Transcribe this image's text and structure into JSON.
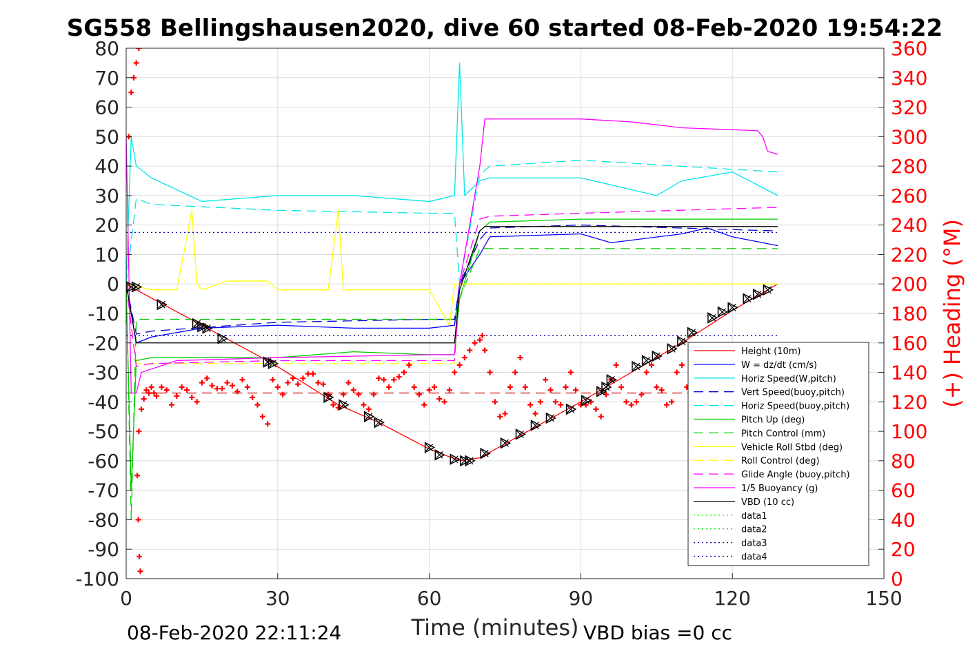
{
  "chart_data": {
    "type": "line",
    "title": "SG558 Bellingshausen2020, dive 60 started 08-Feb-2020 19:54:22",
    "xlabel": "Time (minutes)",
    "ylabel_right": "(+) Heading (°M)",
    "footer_left": "08-Feb-2020 22:11:24",
    "footer_right": "VBD bias =0 cc",
    "xlim": [
      0,
      150
    ],
    "ylim": [
      -100,
      80
    ],
    "ylim_right": [
      0,
      360
    ],
    "xticks": [
      0,
      30,
      60,
      90,
      120,
      150
    ],
    "yticks": [
      -100,
      -90,
      -80,
      -70,
      -60,
      -50,
      -40,
      -30,
      -20,
      -10,
      0,
      10,
      20,
      30,
      40,
      50,
      60,
      70,
      80
    ],
    "yticks_right": [
      0,
      20,
      40,
      60,
      80,
      100,
      120,
      140,
      160,
      180,
      200,
      220,
      240,
      260,
      280,
      300,
      320,
      340,
      360
    ],
    "grid": true,
    "legend_position": "bottom-right",
    "series": [
      {
        "name": "Height (10m)",
        "color": "#ff0000",
        "style": "solid",
        "x": [
          0,
          2,
          29,
          42,
          50,
          60,
          66,
          70,
          90,
          110,
          120,
          129
        ],
        "y": [
          0,
          -2,
          -27,
          -41,
          -47,
          -56,
          -60,
          -59,
          -40,
          -20,
          -9,
          0
        ]
      },
      {
        "name": "W = dz/dt (cm/s)",
        "color": "#0000ff",
        "style": "solid",
        "x": [
          0,
          1,
          2,
          5,
          15,
          30,
          45,
          60,
          65,
          66,
          70,
          72,
          90,
          96,
          110,
          115,
          120,
          129
        ],
        "y": [
          0,
          -10,
          -20,
          -18,
          -15,
          -14,
          -15,
          -15,
          -14,
          0,
          10,
          16,
          17,
          14,
          17,
          19,
          16,
          13
        ]
      },
      {
        "name": "Horiz Speed(W,pitch)",
        "color": "#00e5e5",
        "style": "solid",
        "x": [
          0,
          1,
          2,
          5,
          15,
          30,
          45,
          60,
          65,
          66,
          67,
          70,
          72,
          90,
          105,
          110,
          120,
          129
        ],
        "y": [
          0,
          50,
          40,
          36,
          28,
          30,
          30,
          28,
          30,
          75,
          30,
          35,
          36,
          36,
          30,
          35,
          38,
          30
        ]
      },
      {
        "name": "Vert Speed(buoy,pitch)",
        "color": "#0000cc",
        "style": "dashed",
        "x": [
          0,
          2,
          5,
          30,
          60,
          65,
          66,
          70,
          72,
          90,
          129
        ],
        "y": [
          0,
          -17,
          -16,
          -13,
          -12,
          -12,
          0,
          15,
          19,
          20,
          18
        ]
      },
      {
        "name": "Horiz Speed(buoy,pitch)",
        "color": "#00e5e5",
        "style": "dashed",
        "x": [
          0,
          2,
          5,
          30,
          60,
          65,
          66,
          70,
          72,
          90,
          129
        ],
        "y": [
          0,
          29,
          27,
          25,
          24,
          24,
          0,
          37,
          40,
          42,
          38
        ]
      },
      {
        "name": "Pitch Up (deg)",
        "color": "#00cc00",
        "style": "solid",
        "x": [
          0,
          1,
          2,
          5,
          30,
          45,
          60,
          65,
          66,
          70,
          72,
          90,
          129
        ],
        "y": [
          0,
          -70,
          -26,
          -25,
          -25,
          -23,
          -24,
          -24,
          -5,
          18,
          21,
          22,
          22
        ]
      },
      {
        "name": "Pitch Control (mm)",
        "color": "#00cc00",
        "style": "dashed",
        "x": [
          0,
          1,
          2,
          5,
          60,
          65,
          66,
          70,
          72,
          90,
          129
        ],
        "y": [
          0,
          -80,
          -12,
          -12,
          -12,
          -12,
          -5,
          12,
          12,
          12,
          12
        ]
      },
      {
        "name": "Vehicle Roll Stbd (deg)",
        "color": "#ffff00",
        "style": "solid",
        "x": [
          0,
          5,
          10,
          13,
          14,
          15,
          20,
          28,
          30,
          40,
          42,
          43,
          50,
          60,
          64,
          65,
          70,
          72,
          90,
          110,
          120,
          129
        ],
        "y": [
          0,
          -2,
          -2,
          25,
          0,
          -2,
          1,
          1,
          -2,
          -2,
          25,
          -2,
          -2,
          -2,
          -14,
          0,
          0,
          0,
          0,
          0,
          0,
          0
        ]
      },
      {
        "name": "Roll Control (deg)",
        "color": "#ffff00",
        "style": "dashed",
        "x": [
          0,
          2,
          5,
          30,
          60,
          65,
          66,
          70,
          90,
          129
        ],
        "y": [
          0,
          -27,
          -27,
          -27,
          -27,
          -27,
          0,
          0,
          0,
          0
        ]
      },
      {
        "name": "Glide Angle (buoy,pitch)",
        "color": "#ff00ff",
        "style": "dashed",
        "x": [
          0,
          2,
          5,
          30,
          60,
          65,
          66,
          70,
          72,
          90,
          129
        ],
        "y": [
          0,
          -28,
          -27,
          -26,
          -26,
          -26,
          0,
          22,
          23,
          24,
          26
        ]
      },
      {
        "name": "1/5 Buoyancy (g)",
        "color": "#ff00ff",
        "style": "solid",
        "x": [
          0,
          1,
          2,
          3,
          10,
          30,
          60,
          65,
          66,
          70,
          71,
          90,
          100,
          110,
          125,
          126,
          127,
          129
        ],
        "y": [
          50,
          -37,
          -37,
          -30,
          -26,
          -25,
          -24,
          -24,
          0,
          40,
          56,
          56,
          55,
          53,
          52,
          50,
          45,
          44
        ]
      },
      {
        "name": "VBD (10 cc)",
        "color": "#000000",
        "style": "solid",
        "x": [
          0,
          2,
          65,
          66,
          70,
          71,
          129
        ],
        "y": [
          0,
          -20,
          -20,
          -2,
          18,
          19.5,
          19.5
        ]
      },
      {
        "name": "data1",
        "color": "#00e600",
        "style": "dotted",
        "x": [],
        "y": []
      },
      {
        "name": "data2",
        "color": "#00e600",
        "style": "dotted",
        "x": [],
        "y": []
      },
      {
        "name": "data3",
        "color": "#0000aa",
        "style": "dotted",
        "x": [
          0,
          129
        ],
        "y": [
          17.5,
          17.5
        ]
      },
      {
        "name": "data4",
        "color": "#0000aa",
        "style": "dotted",
        "x": [
          0,
          129
        ],
        "y": [
          -17.5,
          -17.5
        ]
      }
    ],
    "extra_lines": [
      {
        "color": "#cc0000",
        "style": "dashed",
        "x": [
          0,
          129
        ],
        "y": [
          -37,
          -37
        ]
      }
    ],
    "heading_series": {
      "axis": "right",
      "color": "#ff0000",
      "marker": "+",
      "x": [
        0.5,
        1,
        1.5,
        2,
        2.5,
        3,
        2.8,
        2.6,
        2.4,
        2.2,
        2.5,
        3,
        3.5,
        4,
        4.5,
        5,
        5.5,
        6,
        7,
        8,
        9,
        10,
        11,
        12,
        13,
        14,
        15,
        16,
        17,
        18,
        19,
        20,
        21,
        22,
        23,
        24,
        25,
        26,
        27,
        28,
        29,
        30,
        31,
        32,
        33,
        34,
        35,
        36,
        37,
        38,
        39,
        40,
        41,
        42,
        43,
        44,
        45,
        46,
        47,
        48,
        49,
        50,
        51,
        52,
        53,
        54,
        55,
        56,
        57,
        58,
        59,
        60,
        61,
        62,
        63,
        64,
        65,
        66,
        67,
        68,
        69,
        70,
        70.5,
        71,
        72,
        73,
        74,
        75,
        76,
        77,
        78,
        79,
        80,
        81,
        82,
        83,
        84,
        85,
        86,
        87,
        88,
        89,
        90,
        91,
        92,
        93,
        94,
        95,
        96,
        97,
        98,
        99,
        100,
        101,
        102,
        103,
        104,
        105,
        106,
        107,
        108,
        109,
        110,
        111,
        112
      ],
      "y": [
        300,
        330,
        340,
        350,
        360,
        365,
        5,
        15,
        40,
        70,
        100,
        115,
        122,
        128,
        126,
        130,
        126,
        124,
        130,
        128,
        118,
        124,
        130,
        128,
        123,
        120,
        133,
        136,
        131,
        129,
        129,
        133,
        131,
        127,
        135,
        130,
        123,
        118,
        110,
        105,
        135,
        130,
        125,
        133,
        136,
        132,
        136,
        139,
        139,
        133,
        132,
        125,
        118,
        116,
        125,
        133,
        128,
        125,
        118,
        115,
        125,
        136,
        135,
        130,
        135,
        137,
        140,
        145,
        130,
        125,
        118,
        128,
        130,
        122,
        120,
        128,
        140,
        145,
        150,
        155,
        160,
        162,
        165,
        155,
        140,
        120,
        110,
        112,
        130,
        140,
        150,
        130,
        118,
        112,
        120,
        135,
        128,
        120,
        118,
        130,
        140,
        128,
        118,
        118,
        120,
        115,
        110,
        125,
        135,
        145,
        130,
        120,
        118,
        120,
        125,
        140,
        145,
        130,
        128,
        118,
        120,
        140,
        145,
        130,
        105
      ]
    },
    "markers_triangle": {
      "color": "#000000",
      "points_x": [
        1,
        2,
        7,
        14,
        15,
        16,
        19,
        28,
        29,
        40,
        43,
        48,
        50,
        60,
        62,
        65,
        67,
        68,
        71,
        75,
        78,
        81,
        84,
        88,
        91,
        94,
        95,
        96,
        101,
        103,
        105,
        108,
        110,
        112,
        116,
        118,
        120,
        123,
        125,
        127
      ],
      "points_y": [
        -1,
        -1,
        -7,
        -13.5,
        -14.5,
        -15,
        -18.5,
        -26.5,
        -27,
        -38.5,
        -41,
        -45,
        -47,
        -55.5,
        -58,
        -59.5,
        -60,
        -60,
        -57.5,
        -54,
        -51,
        -48,
        -45.5,
        -42.5,
        -39.5,
        -36.5,
        -35,
        -32.5,
        -28,
        -26,
        -24.5,
        -22,
        -19.5,
        -16.5,
        -11.5,
        -9.5,
        -8,
        -5,
        -3.5,
        -2
      ]
    }
  },
  "legend": [
    {
      "label": "Height (10m)",
      "color": "#ff0000",
      "style": "solid"
    },
    {
      "label": "W = dz/dt (cm/s)",
      "color": "#0000ff",
      "style": "solid"
    },
    {
      "label": "Horiz Speed(W,pitch)",
      "color": "#00e5e5",
      "style": "solid"
    },
    {
      "label": "Vert Speed(buoy,pitch)",
      "color": "#0000cc",
      "style": "dashed"
    },
    {
      "label": "Horiz Speed(buoy,pitch)",
      "color": "#00e5e5",
      "style": "dashed"
    },
    {
      "label": "Pitch Up (deg)",
      "color": "#00cc00",
      "style": "solid"
    },
    {
      "label": "Pitch Control (mm)",
      "color": "#00cc00",
      "style": "dashed"
    },
    {
      "label": "Vehicle Roll Stbd (deg)",
      "color": "#ffff00",
      "style": "solid"
    },
    {
      "label": "Roll Control (deg)",
      "color": "#ffff00",
      "style": "dashed"
    },
    {
      "label": "Glide Angle (buoy,pitch)",
      "color": "#ff00ff",
      "style": "dashed"
    },
    {
      "label": "1/5 Buoyancy (g)",
      "color": "#ff00ff",
      "style": "solid"
    },
    {
      "label": "VBD (10 cc)",
      "color": "#000000",
      "style": "solid"
    },
    {
      "label": "data1",
      "color": "#00e600",
      "style": "dotted"
    },
    {
      "label": "data2",
      "color": "#00e600",
      "style": "dotted"
    },
    {
      "label": "data3",
      "color": "#0000aa",
      "style": "dotted"
    },
    {
      "label": "data4",
      "color": "#0000aa",
      "style": "dotted"
    }
  ]
}
